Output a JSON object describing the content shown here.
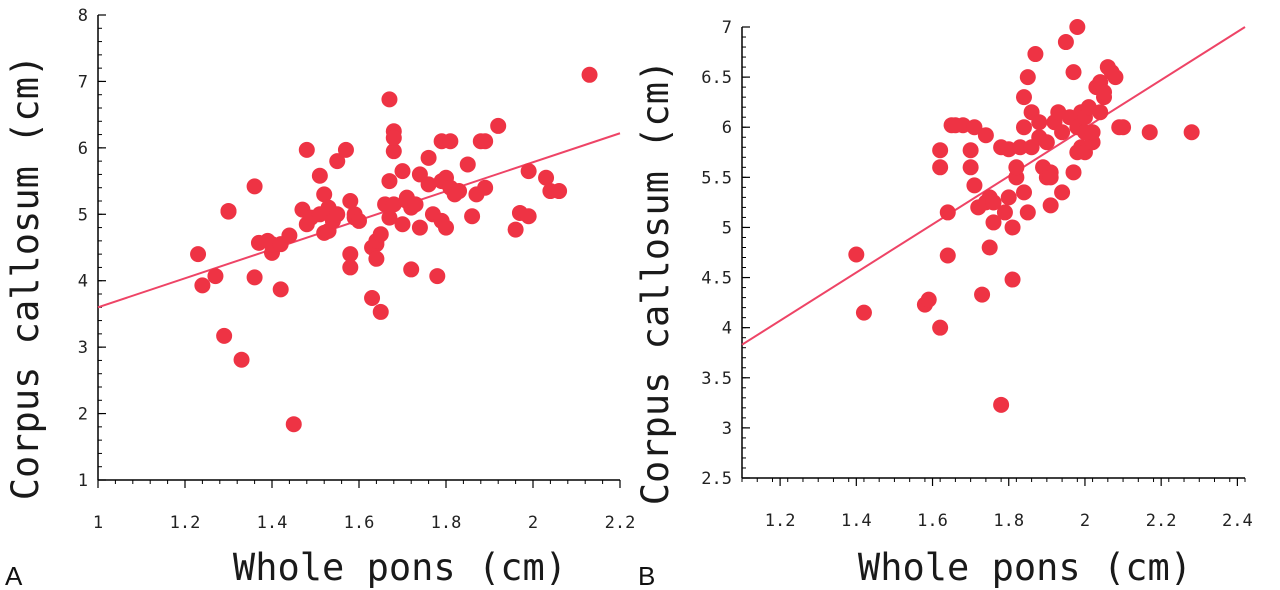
{
  "colors": {
    "point": "#ee3344",
    "fit_line": "#ee4466",
    "axis": "#000000"
  },
  "chart_data": [
    {
      "type": "scatter",
      "panel_label": "A",
      "xlabel": "Whole pons (cm)",
      "ylabel": "Corpus callosum (cm)",
      "xlim": [
        1,
        2.2
      ],
      "ylim": [
        1,
        8
      ],
      "xticks": [
        1,
        1.2,
        1.4,
        1.6,
        1.8,
        2,
        2.2
      ],
      "yticks": [
        1,
        2,
        3,
        4,
        5,
        6,
        7,
        8
      ],
      "tick_labels_x": [
        "1",
        "1.2",
        "1.4",
        "1.6",
        "1.8",
        "2",
        "2.2"
      ],
      "tick_labels_y": [
        "1",
        "2",
        "3",
        "4",
        "5",
        "6",
        "7",
        "8"
      ],
      "grid": false,
      "fit_line": {
        "x": [
          1,
          2.2
        ],
        "y": [
          3.6,
          6.22
        ]
      },
      "x": [
        1.23,
        1.24,
        1.27,
        1.29,
        1.3,
        1.3,
        1.33,
        1.36,
        1.36,
        1.37,
        1.39,
        1.4,
        1.4,
        1.42,
        1.42,
        1.44,
        1.45,
        1.47,
        1.48,
        1.48,
        1.49,
        1.51,
        1.51,
        1.52,
        1.52,
        1.53,
        1.53,
        1.54,
        1.55,
        1.55,
        1.57,
        1.58,
        1.58,
        1.58,
        1.59,
        1.59,
        1.6,
        1.63,
        1.63,
        1.64,
        1.64,
        1.64,
        1.65,
        1.65,
        1.66,
        1.67,
        1.67,
        1.67,
        1.68,
        1.68,
        1.68,
        1.68,
        1.7,
        1.7,
        1.71,
        1.71,
        1.72,
        1.72,
        1.73,
        1.74,
        1.74,
        1.76,
        1.76,
        1.77,
        1.78,
        1.79,
        1.79,
        1.79,
        1.8,
        1.8,
        1.81,
        1.81,
        1.82,
        1.83,
        1.85,
        1.86,
        1.87,
        1.88,
        1.89,
        1.89,
        1.92,
        1.96,
        1.97,
        1.99,
        1.99,
        2.03,
        2.04,
        2.06,
        2.13
      ],
      "y": [
        4.4,
        3.93,
        4.07,
        3.17,
        5.05,
        5.04,
        2.81,
        5.42,
        4.05,
        4.57,
        4.6,
        4.42,
        4.55,
        3.87,
        4.55,
        4.68,
        1.84,
        5.07,
        5.97,
        4.85,
        4.95,
        5.58,
        5.0,
        5.3,
        4.72,
        4.75,
        5.1,
        4.9,
        5.8,
        5.0,
        5.97,
        4.4,
        4.2,
        5.2,
        4.95,
        5.0,
        4.9,
        4.5,
        3.74,
        4.55,
        4.6,
        4.33,
        3.53,
        4.7,
        5.15,
        4.95,
        6.73,
        5.5,
        5.95,
        6.25,
        6.15,
        5.15,
        5.65,
        4.85,
        5.2,
        5.25,
        4.17,
        5.1,
        5.15,
        4.8,
        5.6,
        5.85,
        5.45,
        5.0,
        4.07,
        4.9,
        6.1,
        5.5,
        4.8,
        5.55,
        5.4,
        6.1,
        5.3,
        5.35,
        5.75,
        4.97,
        5.3,
        6.1,
        5.4,
        6.1,
        6.33,
        4.77,
        5.02,
        5.65,
        4.97,
        5.55,
        5.35,
        5.35,
        7.1
      ]
    },
    {
      "type": "scatter",
      "panel_label": "B",
      "xlabel": "Whole pons (cm)",
      "ylabel": "Corpus callosum (cm)",
      "xlim": [
        1.1,
        2.42
      ],
      "ylim": [
        2.5,
        7
      ],
      "xticks": [
        1.2,
        1.4,
        1.6,
        1.8,
        2,
        2.2,
        2.4
      ],
      "yticks": [
        2.5,
        3,
        3.5,
        4,
        4.5,
        5,
        5.5,
        6,
        6.5,
        7
      ],
      "tick_labels_x": [
        "1.2",
        "1.4",
        "1.6",
        "1.8",
        "2",
        "2.2",
        "2.4"
      ],
      "tick_labels_y": [
        "2.5",
        "3",
        "3.5",
        "4",
        "4.5",
        "5",
        "5.5",
        "6",
        "6.5",
        "7"
      ],
      "grid": false,
      "fit_line": {
        "x": [
          1.1,
          2.42
        ],
        "y": [
          3.83,
          7.0
        ]
      },
      "x": [
        1.4,
        1.42,
        1.58,
        1.59,
        1.62,
        1.62,
        1.62,
        1.64,
        1.64,
        1.65,
        1.66,
        1.68,
        1.7,
        1.7,
        1.71,
        1.71,
        1.72,
        1.73,
        1.74,
        1.74,
        1.75,
        1.75,
        1.76,
        1.76,
        1.76,
        1.78,
        1.78,
        1.79,
        1.8,
        1.8,
        1.81,
        1.81,
        1.82,
        1.82,
        1.83,
        1.84,
        1.84,
        1.84,
        1.85,
        1.85,
        1.86,
        1.86,
        1.87,
        1.88,
        1.88,
        1.89,
        1.9,
        1.9,
        1.91,
        1.91,
        1.91,
        1.92,
        1.93,
        1.94,
        1.94,
        1.95,
        1.96,
        1.97,
        1.97,
        1.98,
        1.98,
        1.98,
        1.99,
        1.99,
        2.0,
        2.0,
        2.0,
        2.01,
        2.02,
        2.02,
        2.03,
        2.04,
        2.04,
        2.05,
        2.05,
        2.06,
        2.07,
        2.08,
        2.09,
        2.1,
        2.17,
        2.28
      ],
      "y": [
        4.73,
        4.15,
        4.23,
        4.28,
        4.0,
        5.77,
        5.6,
        5.15,
        4.72,
        6.02,
        6.02,
        6.02,
        5.77,
        5.6,
        6.0,
        5.42,
        5.2,
        4.33,
        5.25,
        5.92,
        4.8,
        5.3,
        5.05,
        5.25,
        5.25,
        3.23,
        5.8,
        5.15,
        5.78,
        5.3,
        4.48,
        5.0,
        5.5,
        5.6,
        5.8,
        6.3,
        6.0,
        5.35,
        6.5,
        5.15,
        5.8,
        6.15,
        6.73,
        6.05,
        5.9,
        5.6,
        5.5,
        5.85,
        5.55,
        5.5,
        5.22,
        6.05,
        6.15,
        5.35,
        5.95,
        6.85,
        6.1,
        5.55,
        6.55,
        7.0,
        6.0,
        5.75,
        6.15,
        5.8,
        6.1,
        5.75,
        5.95,
        6.2,
        5.85,
        5.95,
        6.4,
        6.45,
        6.15,
        6.3,
        6.35,
        6.6,
        6.55,
        6.5,
        6.0,
        6.0,
        5.95,
        5.95
      ]
    }
  ]
}
